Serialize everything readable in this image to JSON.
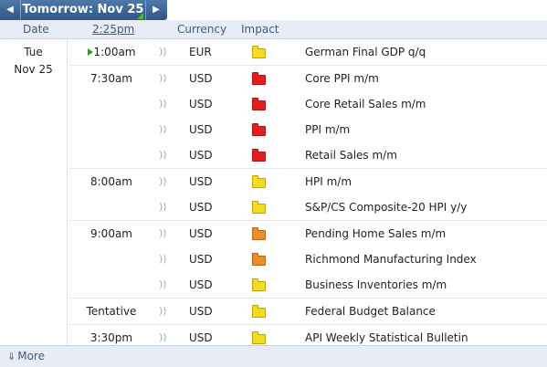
{
  "nav": {
    "prev_glyph": "◀",
    "title": "Tomorrow: Nov 25",
    "next_glyph": "▶"
  },
  "header": {
    "date": "Date",
    "time": "2:25pm",
    "currency": "Currency",
    "impact": "Impact"
  },
  "day": {
    "weekday": "Tue",
    "date": "Nov 25"
  },
  "colors": {
    "high": "#e41d1d",
    "medium": "#f08c27",
    "low": "#f3dd1d"
  },
  "events": [
    {
      "time": "1:00am",
      "playing": true,
      "currency": "EUR",
      "impact": "low",
      "title": "German Final GDP q/q"
    },
    {
      "time": "7:30am",
      "currency": "USD",
      "impact": "high",
      "title": "Core PPI m/m"
    },
    {
      "time": "",
      "currency": "USD",
      "impact": "high",
      "title": "Core Retail Sales m/m"
    },
    {
      "time": "",
      "currency": "USD",
      "impact": "high",
      "title": "PPI m/m"
    },
    {
      "time": "",
      "currency": "USD",
      "impact": "high",
      "title": "Retail Sales m/m"
    },
    {
      "time": "8:00am",
      "currency": "USD",
      "impact": "low",
      "title": "HPI m/m"
    },
    {
      "time": "",
      "currency": "USD",
      "impact": "low",
      "title": "S&P/CS Composite-20 HPI y/y"
    },
    {
      "time": "9:00am",
      "currency": "USD",
      "impact": "medium",
      "title": "Pending Home Sales m/m"
    },
    {
      "time": "",
      "currency": "USD",
      "impact": "medium",
      "title": "Richmond Manufacturing Index"
    },
    {
      "time": "",
      "currency": "USD",
      "impact": "low",
      "title": "Business Inventories m/m"
    },
    {
      "time": "Tentative",
      "currency": "USD",
      "impact": "low",
      "title": "Federal Budget Balance"
    },
    {
      "time": "3:30pm",
      "currency": "USD",
      "impact": "low",
      "title": "API Weekly Statistical Bulletin"
    }
  ],
  "footer": {
    "more_label": "More",
    "more_icon": "down-arrow-icon"
  }
}
